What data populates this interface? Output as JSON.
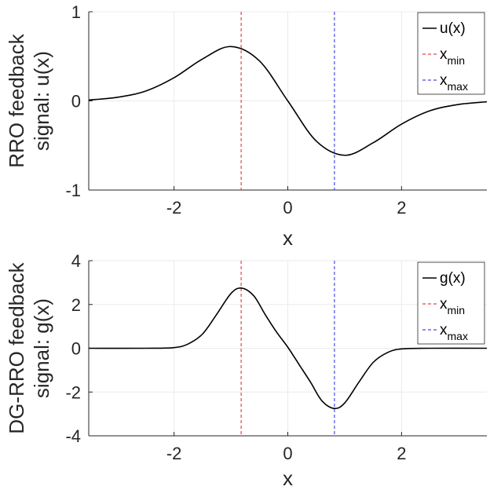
{
  "chart_data": [
    {
      "type": "line",
      "ylabel_lines": [
        "RRO feedback",
        "signal: u(x)"
      ],
      "xlabel": "x",
      "xlim": [
        -3.5,
        3.5
      ],
      "ylim": [
        -1,
        1
      ],
      "xticks": [
        -2,
        0,
        2
      ],
      "xtick_labels": [
        "-2",
        "0",
        "2"
      ],
      "yticks": [
        -1,
        0,
        1
      ],
      "ytick_labels": [
        "-1",
        "0",
        "1"
      ],
      "grid": true,
      "legend_position": "top-right",
      "series": [
        {
          "name": "u(x)",
          "color": "#000000",
          "style": "solid",
          "x": [
            -3.5,
            -3.0,
            -2.5,
            -2.0,
            -1.5,
            -1.0,
            -0.5,
            0.0,
            0.5,
            1.0,
            1.5,
            2.0,
            2.5,
            3.0,
            3.5
          ],
          "y": [
            0.01,
            0.04,
            0.11,
            0.26,
            0.47,
            0.61,
            0.45,
            0.0,
            -0.45,
            -0.61,
            -0.47,
            -0.26,
            -0.11,
            -0.04,
            -0.01
          ]
        }
      ],
      "vlines": [
        {
          "name": "x",
          "sub": "min",
          "x": -0.82,
          "color": "#e8434a",
          "style": "dashed"
        },
        {
          "name": "x",
          "sub": "max",
          "x": 0.82,
          "color": "#4a4ae8",
          "style": "dashed"
        }
      ]
    },
    {
      "type": "line",
      "ylabel_lines": [
        "DG-RRO feedback",
        "signal: g(x)"
      ],
      "xlabel": "x",
      "xlim": [
        -3.5,
        3.5
      ],
      "ylim": [
        -4,
        4
      ],
      "xticks": [
        -2,
        0,
        2
      ],
      "xtick_labels": [
        "-2",
        "0",
        "2"
      ],
      "yticks": [
        -4,
        -2,
        0,
        2,
        4
      ],
      "ytick_labels": [
        "-4",
        "-2",
        "0",
        "2",
        "4"
      ],
      "grid": true,
      "legend_position": "top-right",
      "series": [
        {
          "name": "g(x)",
          "color": "#000000",
          "style": "solid",
          "x": [
            -3.5,
            -2.5,
            -2.0,
            -1.75,
            -1.5,
            -1.25,
            -1.0,
            -0.82,
            -0.6,
            -0.4,
            -0.2,
            0.0,
            0.2,
            0.4,
            0.6,
            0.82,
            1.0,
            1.25,
            1.5,
            1.75,
            2.0,
            2.5,
            3.5
          ],
          "y": [
            0.0,
            0.0,
            0.03,
            0.2,
            0.65,
            1.55,
            2.5,
            2.75,
            2.4,
            1.55,
            0.75,
            0.05,
            -0.75,
            -1.55,
            -2.4,
            -2.75,
            -2.5,
            -1.55,
            -0.65,
            -0.2,
            -0.03,
            0.0,
            0.0
          ]
        }
      ],
      "vlines": [
        {
          "name": "x",
          "sub": "min",
          "x": -0.82,
          "color": "#e8434a",
          "style": "dashed"
        },
        {
          "name": "x",
          "sub": "max",
          "x": 0.82,
          "color": "#4a4ae8",
          "style": "dashed"
        }
      ]
    }
  ]
}
